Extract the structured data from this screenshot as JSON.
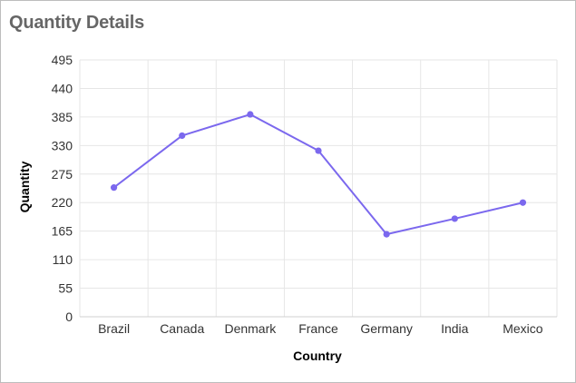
{
  "panel": {
    "title": "Quantity Details"
  },
  "chart_data": {
    "type": "line",
    "title": "Quantity Details",
    "xlabel": "Country",
    "ylabel": "Quantity",
    "categories": [
      "Brazil",
      "Canada",
      "Denmark",
      "France",
      "Germany",
      "India",
      "Mexico"
    ],
    "series": [
      {
        "values": [
          249,
          349,
          390,
          320,
          159,
          189,
          220
        ]
      }
    ],
    "ylim": [
      0,
      495
    ],
    "yticks": [
      0,
      55,
      110,
      165,
      220,
      275,
      330,
      385,
      440,
      495
    ],
    "grid": true,
    "legend": "none",
    "colors": {
      "line": "#7b68ee",
      "grid": "#e6e6e6"
    }
  }
}
